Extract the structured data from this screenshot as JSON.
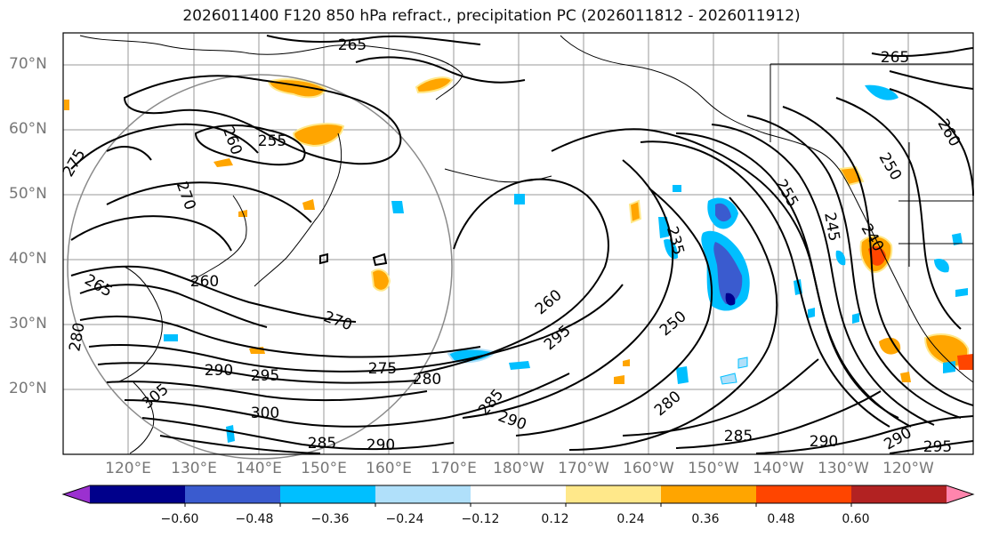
{
  "title": "2026011400 F120 850 hPa refract., precipitation PC (2026011812 - 2026011912)",
  "latitude_labels": [
    "70°N",
    "60°N",
    "50°N",
    "40°N",
    "30°N",
    "20°N"
  ],
  "longitude_labels": [
    "120°E",
    "130°E",
    "140°E",
    "150°E",
    "160°E",
    "170°E",
    "180°W",
    "170°W",
    "160°W",
    "150°W",
    "140°W",
    "130°W",
    "120°W"
  ],
  "contour_labels": [
    "265",
    "265",
    "260",
    "255",
    "275",
    "270",
    "265",
    "260",
    "270",
    "280",
    "290",
    "295",
    "305",
    "300",
    "275",
    "280",
    "285",
    "290",
    "285",
    "290",
    "260",
    "295",
    "250",
    "280",
    "235",
    "255",
    "245",
    "240",
    "250",
    "260",
    "285",
    "290",
    "290",
    "295"
  ],
  "colorbar": {
    "ticks": [
      "−0.60",
      "−0.48",
      "−0.36",
      "−0.24",
      "−0.12",
      "0.12",
      "0.24",
      "0.36",
      "0.48",
      "0.60"
    ],
    "colors": [
      "#9b30d0",
      "#00008b",
      "#3a5bcf",
      "#00bfff",
      "#b0e0fa",
      "#ffffff",
      "#ffe88a",
      "#ffa500",
      "#ff4500",
      "#b22222",
      "#ff85ad"
    ]
  }
}
